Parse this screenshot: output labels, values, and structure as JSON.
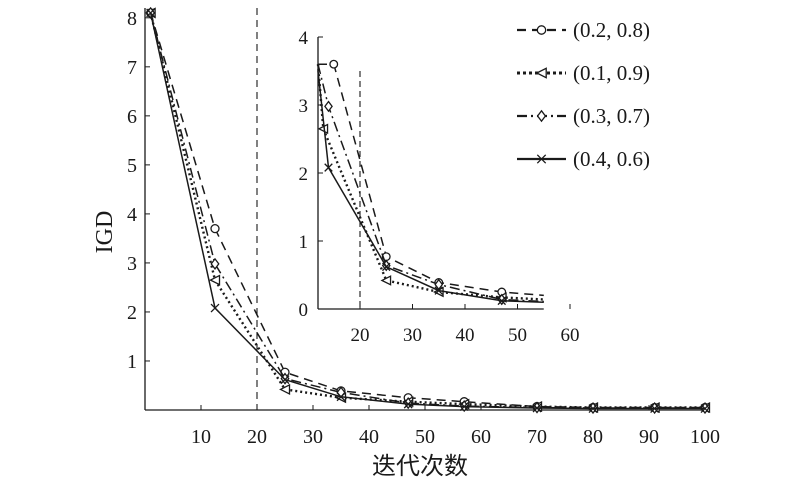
{
  "chart_data": {
    "type": "line",
    "xlabel": "迭代次数",
    "ylabel": "IGD",
    "xlim": [
      0,
      100
    ],
    "ylim": [
      0,
      8.2
    ],
    "xticks": [
      "10",
      "20",
      "30",
      "40",
      "50",
      "60",
      "70",
      "80",
      "90",
      "100"
    ],
    "yticks": [
      "1",
      "2",
      "3",
      "4",
      "5",
      "6",
      "7",
      "8"
    ],
    "reference_line_x": 20,
    "legend_position": "top-right",
    "series": [
      {
        "name": "(0.2, 0.8)",
        "style": "dashed",
        "marker": "circle",
        "x": [
          1,
          12.5,
          25,
          35,
          47,
          57,
          70,
          80,
          91,
          100
        ],
        "y": [
          8.1,
          3.7,
          0.77,
          0.39,
          0.25,
          0.17,
          0.07,
          0.05,
          0.05,
          0.05
        ]
      },
      {
        "name": "(0.1, 0.9)",
        "style": "dotted",
        "marker": "triangle-left",
        "x": [
          1,
          12.5,
          25,
          35,
          47,
          57,
          70,
          80,
          91,
          100
        ],
        "y": [
          8.1,
          2.65,
          0.42,
          0.25,
          0.17,
          0.12,
          0.07,
          0.05,
          0.05,
          0.05
        ]
      },
      {
        "name": "(0.3, 0.7)",
        "style": "dash-dot",
        "marker": "diamond",
        "x": [
          1,
          12.5,
          25,
          35,
          47,
          57,
          70,
          80,
          91,
          100
        ],
        "y": [
          8.1,
          2.98,
          0.64,
          0.36,
          0.14,
          0.08,
          0.05,
          0.04,
          0.04,
          0.04
        ]
      },
      {
        "name": "(0.4, 0.6)",
        "style": "solid",
        "marker": "x",
        "x": [
          1,
          12.5,
          25,
          35,
          47,
          57,
          70,
          80,
          91,
          100
        ],
        "y": [
          8.1,
          2.08,
          0.62,
          0.27,
          0.12,
          0.07,
          0.04,
          0.03,
          0.03,
          0.03
        ]
      }
    ],
    "inset": {
      "xlim": [
        12,
        60
      ],
      "ylim": [
        0,
        4
      ],
      "xticks": [
        "20",
        "30",
        "40",
        "50",
        "60"
      ],
      "yticks": [
        "0",
        "1",
        "2",
        "3",
        "4"
      ],
      "reference_line_x": 20,
      "x_end": 55,
      "series_tails": [
        {
          "name": "(0.2, 0.8)",
          "x": [
            12,
            15,
            25,
            35,
            47,
            55
          ],
          "y": [
            3.6,
            3.6,
            0.77,
            0.39,
            0.25,
            0.2
          ]
        },
        {
          "name": "(0.1, 0.9)",
          "x": [
            12,
            13,
            25,
            35,
            47,
            55
          ],
          "y": [
            3.6,
            2.65,
            0.42,
            0.25,
            0.17,
            0.14
          ]
        },
        {
          "name": "(0.3, 0.7)",
          "x": [
            12,
            14,
            25,
            35,
            47,
            55
          ],
          "y": [
            3.6,
            2.98,
            0.64,
            0.36,
            0.14,
            0.11
          ]
        },
        {
          "name": "(0.4, 0.6)",
          "x": [
            12,
            14,
            25,
            35,
            47,
            55
          ],
          "y": [
            3.5,
            2.08,
            0.62,
            0.27,
            0.12,
            0.1
          ]
        }
      ]
    }
  }
}
